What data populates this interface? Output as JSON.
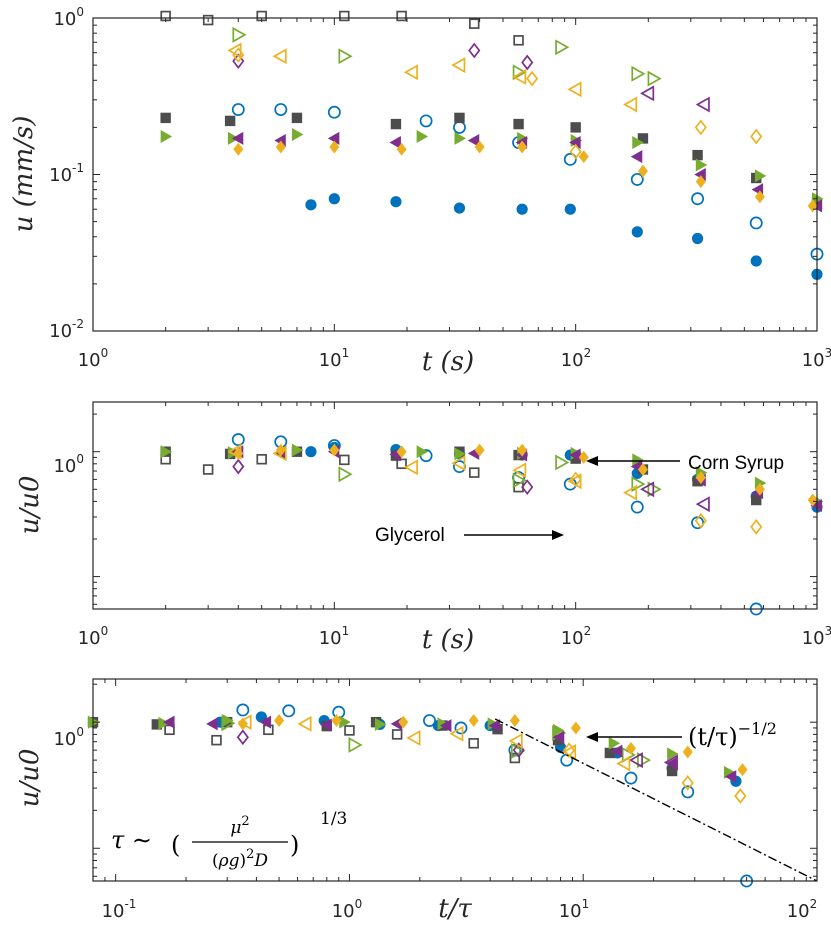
{
  "chart_data": [
    {
      "type": "scatter",
      "id": "top",
      "xscale": "log",
      "yscale": "log",
      "xlim": [
        1,
        1000
      ],
      "ylim": [
        0.01,
        1
      ],
      "xlabel": "t (s)",
      "ylabel": "u (mm/s)",
      "xticks": [
        {
          "base": "10",
          "exp": "0"
        },
        {
          "base": "10",
          "exp": "1"
        },
        {
          "base": "10",
          "exp": "2"
        },
        {
          "base": "10",
          "exp": "3"
        }
      ],
      "yticks": [
        {
          "base": "10",
          "exp": "-2"
        },
        {
          "base": "10",
          "exp": "-1"
        },
        {
          "base": "10",
          "exp": "0"
        }
      ],
      "series": [
        {
          "name": "blue-filled-circle",
          "marker": "circle",
          "filled": true,
          "color": "#0072BD",
          "x": [
            8,
            10,
            18,
            33,
            60,
            95,
            180,
            320,
            560,
            1000
          ],
          "y": [
            0.064,
            0.07,
            0.067,
            0.061,
            0.06,
            0.06,
            0.043,
            0.039,
            0.028,
            0.023
          ]
        },
        {
          "name": "blue-open-circle",
          "marker": "circle",
          "filled": false,
          "color": "#0072BD",
          "x": [
            4,
            6,
            10,
            24,
            33,
            58,
            95,
            180,
            320,
            560,
            1000
          ],
          "y": [
            0.26,
            0.26,
            0.25,
            0.22,
            0.2,
            0.16,
            0.125,
            0.093,
            0.07,
            0.049,
            0.031
          ]
        },
        {
          "name": "gray-filled-square",
          "marker": "square",
          "filled": true,
          "color": "#4D4D4D",
          "x": [
            2,
            3.7,
            7,
            18,
            33,
            58,
            100,
            190,
            320,
            560,
            1000
          ],
          "y": [
            0.23,
            0.22,
            0.23,
            0.21,
            0.23,
            0.21,
            0.2,
            0.17,
            0.133,
            0.095,
            0.065
          ]
        },
        {
          "name": "gray-open-square",
          "marker": "square",
          "filled": false,
          "color": "#4D4D4D",
          "x": [
            2,
            3,
            5,
            11,
            19,
            38,
            58
          ],
          "y": [
            1.1,
            0.97,
            1.1,
            1.1,
            1.05,
            0.92,
            0.72
          ]
        },
        {
          "name": "green-filled-triangle",
          "marker": "triangle-right",
          "filled": true,
          "color": "#77AC30",
          "x": [
            2,
            3.8,
            7,
            23,
            33,
            60,
            100,
            180,
            330,
            580,
            1000
          ],
          "y": [
            0.175,
            0.17,
            0.18,
            0.175,
            0.17,
            0.17,
            0.165,
            0.16,
            0.115,
            0.098,
            0.07
          ]
        },
        {
          "name": "green-open-triangle",
          "marker": "triangle-right",
          "filled": false,
          "color": "#77AC30",
          "x": [
            4,
            11,
            58,
            87,
            180,
            210
          ],
          "y": [
            0.78,
            0.57,
            0.45,
            0.65,
            0.44,
            0.41
          ]
        },
        {
          "name": "purple-filled-triangle",
          "marker": "triangle-left",
          "filled": true,
          "color": "#7E2F8E",
          "x": [
            4,
            6,
            10,
            18,
            38,
            60,
            100,
            180,
            330,
            570,
            1000
          ],
          "y": [
            0.17,
            0.165,
            0.17,
            0.16,
            0.165,
            0.16,
            0.16,
            0.13,
            0.1,
            0.08,
            0.063
          ]
        },
        {
          "name": "purple-open-triangle",
          "marker": "triangle-left",
          "filled": false,
          "color": "#7E2F8E",
          "x": [
            200,
            340
          ],
          "y": [
            0.33,
            0.28
          ]
        },
        {
          "name": "purple-open-diamond",
          "marker": "diamond",
          "filled": false,
          "color": "#7E2F8E",
          "x": [
            4,
            38,
            63
          ],
          "y": [
            0.53,
            0.62,
            0.52
          ]
        },
        {
          "name": "orange-filled-diamond",
          "marker": "diamond",
          "filled": true,
          "color": "#EDB120",
          "x": [
            4,
            6,
            10,
            19,
            40,
            60,
            108,
            190,
            330,
            580,
            960
          ],
          "y": [
            0.145,
            0.15,
            0.15,
            0.145,
            0.15,
            0.15,
            0.13,
            0.105,
            0.09,
            0.072,
            0.063
          ]
        },
        {
          "name": "orange-open-triangle",
          "marker": "triangle-left",
          "filled": false,
          "color": "#EDB120",
          "x": [
            3.9,
            6,
            21,
            33,
            59,
            100,
            170
          ],
          "y": [
            0.62,
            0.57,
            0.45,
            0.5,
            0.42,
            0.35,
            0.28
          ]
        },
        {
          "name": "orange-open-diamond",
          "marker": "diamond",
          "filled": false,
          "color": "#EDB120",
          "x": [
            4,
            66,
            100,
            330,
            560
          ],
          "y": [
            0.58,
            0.41,
            0.14,
            0.2,
            0.175
          ]
        }
      ]
    },
    {
      "type": "scatter",
      "id": "mid",
      "xscale": "log",
      "yscale": "log",
      "xlim": [
        1,
        1000
      ],
      "ylim": [
        0.055,
        2.5
      ],
      "xlabel": "t (s)",
      "ylabel": "u/u0",
      "xticks": [
        {
          "base": "10",
          "exp": "0"
        },
        {
          "base": "10",
          "exp": "1"
        },
        {
          "base": "10",
          "exp": "2"
        },
        {
          "base": "10",
          "exp": "3"
        }
      ],
      "yticks": [
        {
          "base": "10",
          "exp": "0"
        }
      ],
      "annotations": [
        "Corn Syrup",
        "Glycerol"
      ],
      "series": [
        {
          "name": "blue-filled-circle",
          "marker": "circle",
          "filled": true,
          "color": "#0072BD",
          "x": [
            8,
            10,
            18,
            33,
            60,
            95,
            180,
            320,
            560,
            1000
          ],
          "y": [
            1,
            1.08,
            1.04,
            0.96,
            0.94,
            0.94,
            0.67,
            0.6,
            0.44,
            0.36
          ]
        },
        {
          "name": "blue-open-circle",
          "marker": "circle",
          "filled": false,
          "color": "#0072BD",
          "x": [
            4,
            6,
            10,
            24,
            33,
            58,
            95,
            180,
            320,
            560
          ],
          "y": [
            1.25,
            1.2,
            1.12,
            0.93,
            0.76,
            0.62,
            0.55,
            0.36,
            0.27,
            0.055
          ]
        },
        {
          "name": "gray-filled-square",
          "marker": "square",
          "filled": true,
          "color": "#4D4D4D",
          "x": [
            2,
            3.7,
            7,
            18,
            33,
            58,
            100,
            190,
            320,
            560
          ],
          "y": [
            1,
            0.96,
            1,
            0.93,
            1,
            0.94,
            0.88,
            0.72,
            0.58,
            0.41
          ]
        },
        {
          "name": "gray-open-square",
          "marker": "square",
          "filled": false,
          "color": "#4D4D4D",
          "x": [
            2,
            3,
            5,
            11,
            19,
            38,
            58
          ],
          "y": [
            0.87,
            0.72,
            0.87,
            0.86,
            0.8,
            0.68,
            0.52
          ]
        },
        {
          "name": "green-filled-triangle",
          "marker": "triangle-right",
          "filled": true,
          "color": "#77AC30",
          "x": [
            2,
            3.8,
            7,
            23,
            33,
            60,
            100,
            180,
            330,
            580,
            1000
          ],
          "y": [
            1,
            0.98,
            1.03,
            1,
            0.96,
            0.97,
            0.97,
            0.86,
            0.68,
            0.56,
            0.4
          ]
        },
        {
          "name": "green-open-triangle",
          "marker": "triangle-right",
          "filled": false,
          "color": "#77AC30",
          "x": [
            11,
            58,
            87,
            180,
            210
          ],
          "y": [
            0.66,
            0.59,
            0.82,
            0.55,
            0.5
          ]
        },
        {
          "name": "purple-filled-triangle",
          "marker": "triangle-left",
          "filled": true,
          "color": "#7E2F8E",
          "x": [
            4,
            6,
            10,
            18,
            38,
            60,
            100,
            180,
            330,
            570,
            1000
          ],
          "y": [
            1,
            0.97,
            1,
            0.95,
            0.97,
            0.94,
            0.94,
            0.76,
            0.59,
            0.47,
            0.37
          ]
        },
        {
          "name": "purple-open-triangle",
          "marker": "triangle-left",
          "filled": false,
          "color": "#7E2F8E",
          "x": [
            200,
            340
          ],
          "y": [
            0.5,
            0.38
          ]
        },
        {
          "name": "purple-open-diamond",
          "marker": "diamond",
          "filled": false,
          "color": "#7E2F8E",
          "x": [
            4,
            63
          ],
          "y": [
            0.76,
            0.52
          ]
        },
        {
          "name": "orange-filled-diamond",
          "marker": "diamond",
          "filled": true,
          "color": "#EDB120",
          "x": [
            4,
            6,
            10,
            19,
            40,
            60,
            108,
            190,
            330,
            580,
            960
          ],
          "y": [
            0.97,
            1.03,
            1.03,
            1,
            1.03,
            1.03,
            0.9,
            0.72,
            0.62,
            0.5,
            0.41
          ]
        },
        {
          "name": "orange-open-triangle",
          "marker": "triangle-left",
          "filled": false,
          "color": "#EDB120",
          "x": [
            3.9,
            6,
            21,
            33,
            59,
            100,
            170
          ],
          "y": [
            1,
            0.97,
            0.75,
            0.81,
            0.71,
            0.58,
            0.47
          ]
        },
        {
          "name": "orange-open-diamond",
          "marker": "diamond",
          "filled": false,
          "color": "#EDB120",
          "x": [
            100,
            330,
            560
          ],
          "y": [
            0.6,
            0.28,
            0.25
          ]
        }
      ]
    },
    {
      "type": "scatter",
      "id": "bottom",
      "xscale": "log",
      "yscale": "log",
      "xlim": [
        0.08,
        100
      ],
      "ylim": [
        0.055,
        2.2
      ],
      "xlabel": "t/τ",
      "ylabel": "u/u0",
      "xticks": [
        {
          "base": "10",
          "exp": "-1"
        },
        {
          "base": "10",
          "exp": "0"
        },
        {
          "base": "10",
          "exp": "1"
        },
        {
          "base": "10",
          "exp": "2"
        }
      ],
      "yticks": [
        {
          "base": "10",
          "exp": "0"
        }
      ],
      "annotations": [
        "(t/τ)^{-1/2}",
        "τ ∼ (μ² / ((ρg)² D))^{1/3}"
      ],
      "reference_line": {
        "name": "power-law -1/2",
        "x": [
          4.2,
          100
        ],
        "y": [
          1.06,
          0.055
        ]
      },
      "series": [
        {
          "name": "blue-filled-circle",
          "marker": "circle",
          "filled": true,
          "color": "#0072BD",
          "x": [
            0.28,
            0.42,
            0.78,
            1.35,
            2.4,
            4,
            8,
            14,
            24,
            45
          ],
          "y": [
            1,
            1.1,
            1.03,
            0.96,
            0.94,
            0.94,
            0.63,
            0.57,
            0.43,
            0.34
          ]
        },
        {
          "name": "blue-open-circle",
          "marker": "circle",
          "filled": false,
          "color": "#0072BD",
          "x": [
            0.35,
            0.55,
            0.9,
            2.2,
            3,
            5.1,
            8.5,
            16,
            28,
            50
          ],
          "y": [
            1.25,
            1.23,
            1.2,
            1.03,
            0.9,
            0.6,
            0.5,
            0.36,
            0.28,
            0.055
          ]
        },
        {
          "name": "gray-filled-square",
          "marker": "square",
          "filled": true,
          "color": "#4D4D4D",
          "x": [
            0.08,
            0.15,
            0.3,
            0.8,
            1.3,
            2.5,
            4.3,
            7.8,
            13,
            24
          ],
          "y": [
            1,
            0.96,
            1,
            0.93,
            1,
            0.94,
            0.88,
            0.72,
            0.57,
            0.41
          ]
        },
        {
          "name": "gray-open-square",
          "marker": "square",
          "filled": false,
          "color": "#4D4D4D",
          "x": [
            0.17,
            0.27,
            0.45,
            1,
            1.6,
            3.4,
            5.1
          ],
          "y": [
            0.87,
            0.72,
            0.87,
            0.86,
            0.8,
            0.68,
            0.52
          ]
        },
        {
          "name": "green-filled-triangle",
          "marker": "triangle-right",
          "filled": true,
          "color": "#77AC30",
          "x": [
            0.08,
            0.16,
            0.3,
            0.95,
            1.35,
            2.5,
            4.1,
            7.8,
            13.5,
            24,
            42
          ],
          "y": [
            1,
            0.98,
            1.03,
            1,
            0.96,
            0.97,
            0.97,
            0.86,
            0.68,
            0.56,
            0.4
          ]
        },
        {
          "name": "green-open-triangle",
          "marker": "triangle-right",
          "filled": false,
          "color": "#77AC30",
          "x": [
            0.3,
            1.05,
            5.2,
            7.8,
            15.5,
            18
          ],
          "y": [
            0.98,
            0.66,
            0.59,
            0.82,
            0.55,
            0.5
          ]
        },
        {
          "name": "purple-filled-triangle",
          "marker": "triangle-left",
          "filled": true,
          "color": "#7E2F8E",
          "x": [
            0.17,
            0.26,
            0.44,
            0.8,
            1.6,
            2.6,
            4.2,
            7.9,
            14,
            24,
            43
          ],
          "y": [
            1,
            0.97,
            1,
            0.95,
            0.97,
            0.94,
            0.94,
            0.76,
            0.59,
            0.47,
            0.37
          ]
        },
        {
          "name": "purple-open-triangle",
          "marker": "triangle-left",
          "filled": false,
          "color": "#7E2F8E",
          "x": [
            17,
            24
          ],
          "y": [
            0.5,
            0.48
          ]
        },
        {
          "name": "purple-open-diamond",
          "marker": "diamond",
          "filled": false,
          "color": "#7E2F8E",
          "x": [
            0.35,
            5.3
          ],
          "y": [
            0.76,
            0.6
          ]
        },
        {
          "name": "orange-filled-diamond",
          "marker": "diamond",
          "filled": true,
          "color": "#EDB120",
          "x": [
            0.35,
            0.5,
            0.88,
            1.7,
            3.4,
            5.1,
            9.3,
            16,
            28,
            48
          ],
          "y": [
            0.97,
            1.03,
            1.03,
            1,
            1.03,
            1.03,
            0.9,
            0.62,
            0.58,
            0.42
          ]
        },
        {
          "name": "orange-open-triangle",
          "marker": "triangle-left",
          "filled": false,
          "color": "#EDB120",
          "x": [
            0.36,
            0.65,
            1.9,
            2.9,
            5.2,
            8.8,
            15
          ],
          "y": [
            1,
            0.97,
            0.75,
            0.81,
            0.71,
            0.58,
            0.47
          ]
        },
        {
          "name": "orange-open-diamond",
          "marker": "diamond",
          "filled": false,
          "color": "#EDB120",
          "x": [
            8.7,
            28,
            47
          ],
          "y": [
            0.6,
            0.33,
            0.26
          ]
        }
      ]
    }
  ]
}
